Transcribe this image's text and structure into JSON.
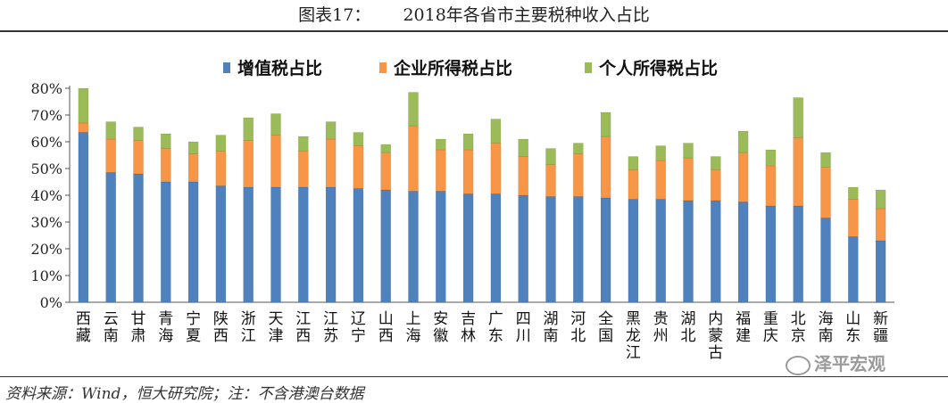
{
  "header": {
    "figure_label": "图表17：",
    "title": "2018年各省市主要税种收入占比"
  },
  "footer": {
    "source": "资料来源：Wind，恒大研究院；注：不含港澳台数据"
  },
  "watermark": {
    "text": "泽平宏观",
    "icon": "wechat-icon"
  },
  "chart_data": {
    "type": "bar",
    "stacked": true,
    "categories": [
      "西藏",
      "云南",
      "甘肃",
      "青海",
      "宁夏",
      "陕西",
      "浙江",
      "天津",
      "江西",
      "江苏",
      "辽宁",
      "山西",
      "上海",
      "安徽",
      "吉林",
      "广东",
      "四川",
      "湖南",
      "河北",
      "全国",
      "黑龙江",
      "贵州",
      "湖北",
      "内蒙古",
      "福建",
      "重庆",
      "北京",
      "海南",
      "山东",
      "新疆"
    ],
    "series": [
      {
        "name": "增值税占比",
        "color": "#4f81bd",
        "values": [
          63.5,
          48.5,
          48,
          45,
          45,
          43.5,
          43,
          43,
          43,
          43,
          42.5,
          42,
          41.5,
          41.5,
          40.5,
          40.5,
          40,
          39.5,
          39.5,
          39,
          38.5,
          38.5,
          38,
          38,
          37.5,
          36,
          36,
          31.5,
          24.5,
          23
        ]
      },
      {
        "name": "企业所得税占比",
        "color": "#f79646",
        "values": [
          3.5,
          12.5,
          12.5,
          12.5,
          10.5,
          13,
          17.5,
          19.5,
          13.5,
          18,
          16,
          14,
          24.5,
          15.5,
          16.5,
          19,
          14.5,
          12,
          16,
          23,
          11,
          14.5,
          16,
          11.5,
          18.5,
          15,
          25.5,
          19,
          14,
          12
        ]
      },
      {
        "name": "个人所得税占比",
        "color": "#9bbb59",
        "values": [
          13,
          6.5,
          5,
          5.5,
          4.5,
          6,
          8.5,
          8,
          5.5,
          6.5,
          5,
          3,
          12.5,
          4,
          6,
          9,
          6.5,
          6,
          4,
          9,
          5,
          5.5,
          5.5,
          5,
          8,
          6,
          15,
          5.5,
          4.5,
          7
        ]
      }
    ],
    "yticks": [
      "0%",
      "10%",
      "20%",
      "30%",
      "40%",
      "50%",
      "60%",
      "70%",
      "80%"
    ],
    "ylim": [
      0,
      80
    ],
    "grid": false,
    "legend": "top-center"
  }
}
